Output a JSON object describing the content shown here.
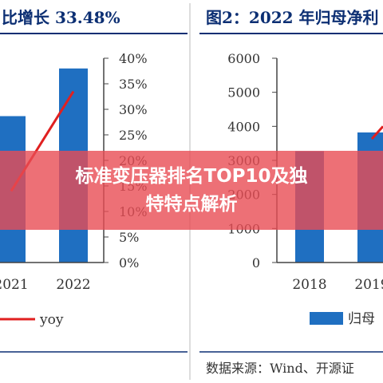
{
  "overlay": {
    "line1": "标准变压器排名TOP10及独",
    "line2": "特特点解析"
  },
  "source_note": "数据来源：Wind、开源证",
  "colors": {
    "bar": "#1f6fc1",
    "line": "#e02020",
    "title": "#0c2f73",
    "axis": "#444444"
  },
  "chart_data": [
    {
      "type": "bar",
      "title": "比增长 33.48%",
      "categories": [
        "2021",
        "2022"
      ],
      "series": [
        {
          "values": [
            4300,
            5700
          ]
        },
        {
          "name": "yoy",
          "type": "line",
          "axis": "right",
          "values": [
            0.14,
            0.335
          ]
        }
      ],
      "yright": {
        "ylim": [
          0,
          0.4
        ],
        "ticks": [
          "40%",
          "35%",
          "30%",
          "25%",
          "20%",
          "15%",
          "10%",
          "5%",
          "0%"
        ]
      },
      "legend": {
        "placement": "bottom",
        "entries": [
          "yoy"
        ]
      }
    },
    {
      "type": "bar",
      "title": "图2：2022 年归母净利",
      "categories": [
        "2018",
        "2019"
      ],
      "series": [
        {
          "name": "归母",
          "values": [
            3270,
            3820
          ]
        },
        {
          "type": "line",
          "values": [
            3630,
            4000
          ]
        }
      ],
      "yleft": {
        "ylim": [
          0,
          6000
        ],
        "ticks": [
          "6000",
          "5000",
          "4000",
          "3000",
          "2000",
          "1000",
          "0"
        ]
      },
      "legend": {
        "placement": "bottom",
        "entries": [
          "归母"
        ]
      }
    }
  ]
}
